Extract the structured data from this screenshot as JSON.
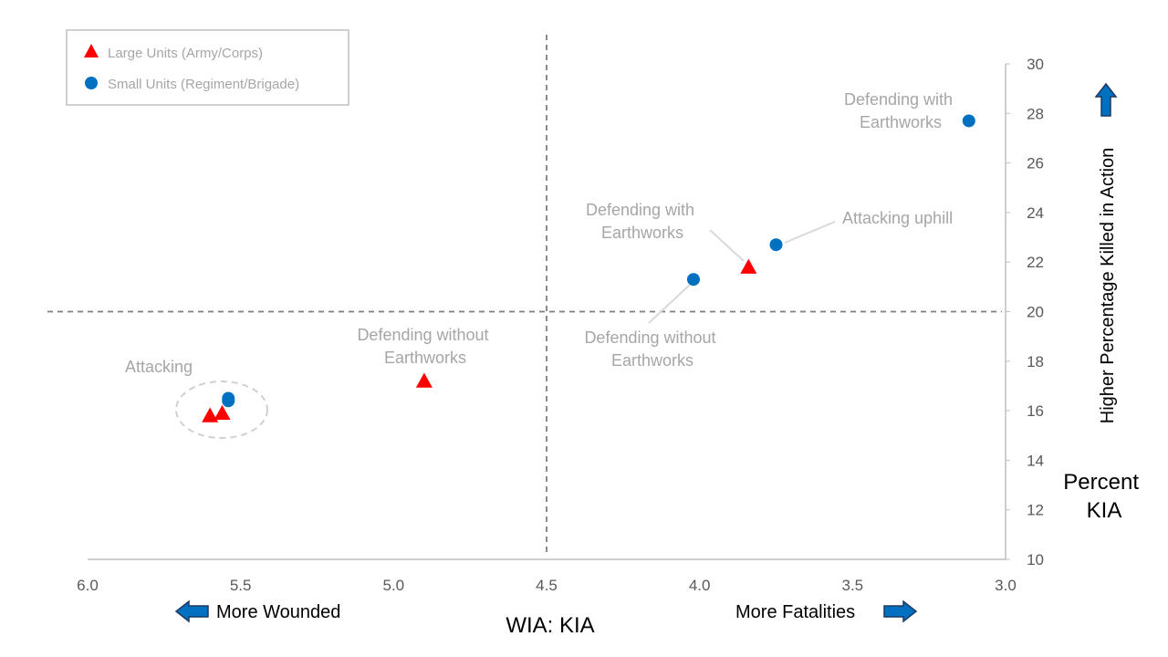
{
  "chart_data": {
    "type": "scatter",
    "xlabel": "WIA: KIA",
    "ylabel": "Percent KIA",
    "y_direction_label": "Higher Percentage Killed in Action",
    "x_left_label": "More Wounded",
    "x_right_label": "More Fatalities",
    "xlim": [
      6.0,
      3.0
    ],
    "x_reversed": true,
    "ylim": [
      10,
      30
    ],
    "x_ticks": [
      "6.0",
      "5.5",
      "5.0",
      "4.5",
      "4.0",
      "3.5",
      "3.0"
    ],
    "y_ticks": [
      "10",
      "12",
      "14",
      "16",
      "18",
      "20",
      "22",
      "24",
      "26",
      "28",
      "30"
    ],
    "reference_lines": {
      "x": 4.5,
      "y": 20
    },
    "legend_position": "top-left",
    "series": [
      {
        "name": "Large Units (Army/Corps)",
        "marker": "triangle",
        "color": "#ff0000",
        "points": [
          {
            "x": 5.6,
            "y": 15.8
          },
          {
            "x": 5.56,
            "y": 15.9
          },
          {
            "x": 4.9,
            "y": 17.2
          },
          {
            "x": 3.84,
            "y": 21.8
          }
        ]
      },
      {
        "name": "Small Units (Regiment/Brigade)",
        "marker": "circle",
        "color": "#0070c0",
        "points": [
          {
            "x": 5.54,
            "y": 16.4
          },
          {
            "x": 5.54,
            "y": 16.5
          },
          {
            "x": 4.02,
            "y": 21.3
          },
          {
            "x": 3.75,
            "y": 22.7
          },
          {
            "x": 3.12,
            "y": 27.7
          }
        ]
      }
    ],
    "annotations": [
      {
        "lines": [
          "Attacking"
        ]
      },
      {
        "lines": [
          "Defending without",
          "Earthworks"
        ]
      },
      {
        "lines": [
          "Defending with",
          "Earthworks"
        ]
      },
      {
        "lines": [
          "Defending without",
          "Earthworks"
        ]
      },
      {
        "lines": [
          "Attacking uphill"
        ]
      },
      {
        "lines": [
          "Defending with",
          "Earthworks"
        ]
      }
    ]
  },
  "colors": {
    "axis": "#bfbfbf",
    "reference_line": "#7f7f7f",
    "annotation": "#a6a6a6",
    "arrow_fill": "#0070c0",
    "arrow_stroke": "#1f3864"
  }
}
